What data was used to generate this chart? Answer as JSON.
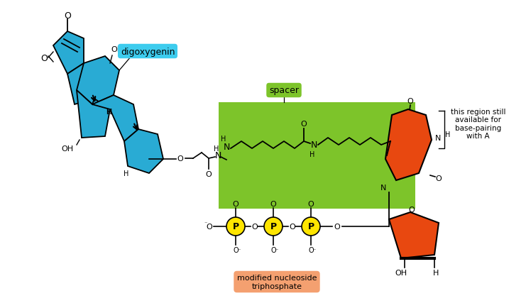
{
  "bg_color": "#ffffff",
  "cyan_color": "#29ABD4",
  "green_color": "#7DC42A",
  "orange_color": "#E84810",
  "yellow_color": "#FFE500",
  "black_color": "#000000",
  "label_cyan_bg": "#3DCCEE",
  "label_green_bg": "#7DC42A",
  "label_orange_bg": "#F4A070",
  "digoxygenin_label": "digoxygenin",
  "spacer_label": "spacer",
  "modified_label": "modified nucleoside\ntriphosphate",
  "region_label": "this region still\navailable for\nbase-pairing\nwith A"
}
